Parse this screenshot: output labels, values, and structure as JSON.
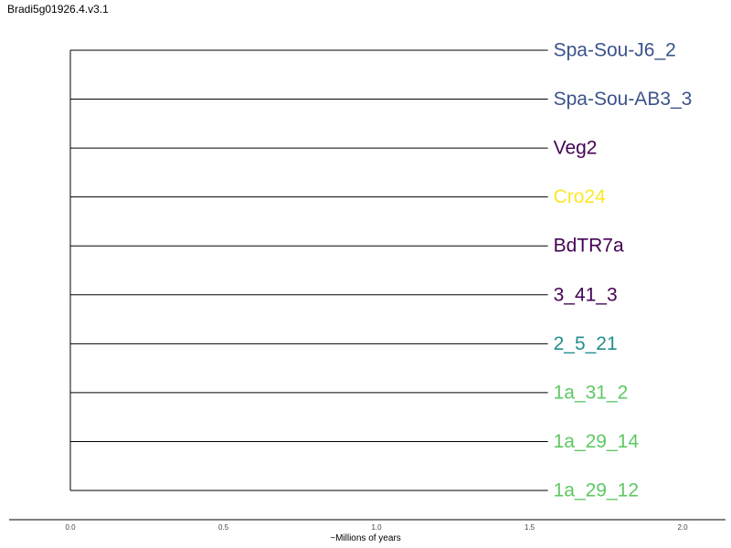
{
  "title": "Bradi5g01926.4.v3.1",
  "chart_data": {
    "type": "tree",
    "layout": "rectangular",
    "root_x": 0.0,
    "leaves": [
      {
        "name": "Spa-Sou-J6_2",
        "branch_length": 1.56,
        "color": "#3b528b"
      },
      {
        "name": "Spa-Sou-AB3_3",
        "branch_length": 1.56,
        "color": "#3b528b"
      },
      {
        "name": "Veg2",
        "branch_length": 1.56,
        "color": "#440154"
      },
      {
        "name": "Cro24",
        "branch_length": 1.56,
        "color": "#fde725"
      },
      {
        "name": "BdTR7a",
        "branch_length": 1.56,
        "color": "#440154"
      },
      {
        "name": "3_41_3",
        "branch_length": 1.56,
        "color": "#440154"
      },
      {
        "name": "2_5_21",
        "branch_length": 1.56,
        "color": "#21908d"
      },
      {
        "name": "1a_31_2",
        "branch_length": 1.56,
        "color": "#5ec962"
      },
      {
        "name": "1a_29_14",
        "branch_length": 1.56,
        "color": "#5ec962"
      },
      {
        "name": "1a_29_12",
        "branch_length": 1.56,
        "color": "#5ec962"
      }
    ],
    "x_axis": {
      "label": "~Millions of years",
      "ticks": [
        0.0,
        0.5,
        1.0,
        1.5,
        2.0
      ],
      "tick_labels": [
        "0.0",
        "0.5",
        "1.0",
        "1.5",
        "2.0"
      ],
      "range": [
        -0.2,
        2.14
      ]
    },
    "branch_color": "#000000",
    "grid": false
  }
}
